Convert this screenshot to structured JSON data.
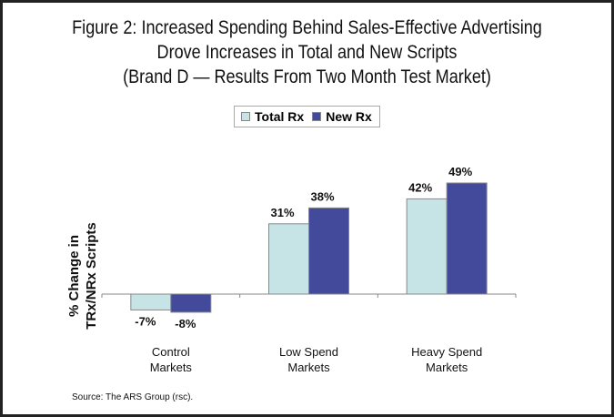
{
  "chart_data": {
    "type": "bar",
    "title": [
      "Figure 2: Increased Spending Behind Sales-Effective Advertising",
      "Drove Increases in Total and New Scripts",
      "(Brand D — Results From Two Month Test Market)"
    ],
    "categories": [
      [
        "Control",
        "Markets"
      ],
      [
        "Low Spend",
        "Markets"
      ],
      [
        "Heavy Spend",
        "Markets"
      ]
    ],
    "series": [
      {
        "name": "Total Rx",
        "color": "#c6e4e6",
        "values": [
          -7,
          31,
          42
        ],
        "labels": [
          "-7%",
          "31%",
          "42%"
        ]
      },
      {
        "name": "New Rx",
        "color": "#434a9c",
        "values": [
          -8,
          38,
          49
        ],
        "labels": [
          "-8%",
          "38%",
          "49%"
        ]
      }
    ],
    "xlabel": "",
    "ylabel": [
      "% Change in",
      "TRx/NRx Scripts"
    ],
    "ylim": [
      -10,
      60
    ],
    "grid": false,
    "legend": "top-center"
  },
  "source": "Source: The ARS Group (rsc)."
}
